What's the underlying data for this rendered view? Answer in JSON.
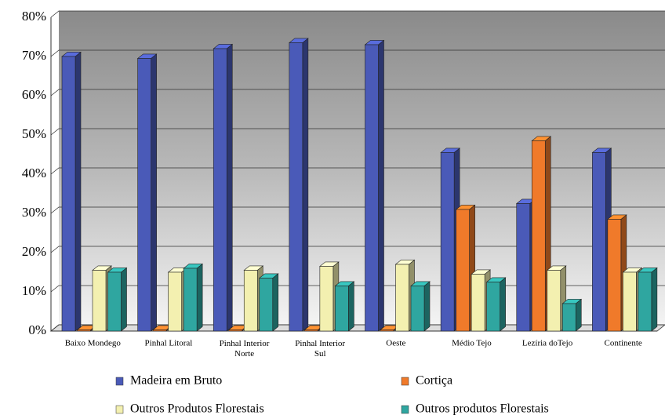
{
  "chart_data": {
    "type": "bar3d",
    "categories": [
      "Baixo Mondego",
      "Pinhal Litoral",
      "Pinhal Interior Norte",
      "Pinhal Interior Sul",
      "Oeste",
      "Médio  Tejo",
      "Lezíria doTejo",
      "Continente"
    ],
    "series": [
      {
        "name": "Madeira em Bruto",
        "color": "#4a5ab8",
        "values": [
          70,
          69.5,
          72,
          73.5,
          73,
          45.5,
          32.5,
          45.5
        ]
      },
      {
        "name": "Cortiça",
        "color": "#f07a2a",
        "values": [
          0.3,
          0.3,
          0.3,
          0.3,
          0.3,
          31,
          48.5,
          28.5
        ]
      },
      {
        "name": "Outros Produtos Florestais",
        "color": "#f3f0b0",
        "values": [
          15.5,
          15,
          15.5,
          16.5,
          17,
          14.5,
          15.5,
          15
        ]
      },
      {
        "name": "Outros produtos Florestais",
        "color": "#2fa6a0",
        "values": [
          15,
          16,
          13.5,
          11.5,
          11.5,
          12.5,
          7,
          15
        ]
      }
    ],
    "ylim": [
      0,
      80
    ],
    "yticks": [
      {
        "value": 0,
        "label": "0%"
      },
      {
        "value": 10,
        "label": "10%"
      },
      {
        "value": 20,
        "label": "20%"
      },
      {
        "value": 30,
        "label": "30%"
      },
      {
        "value": 40,
        "label": "40%"
      },
      {
        "value": 50,
        "label": "50%"
      },
      {
        "value": 60,
        "label": "60%"
      },
      {
        "value": 70,
        "label": "70%"
      },
      {
        "value": 80,
        "label": "80%"
      }
    ],
    "grid": true
  }
}
